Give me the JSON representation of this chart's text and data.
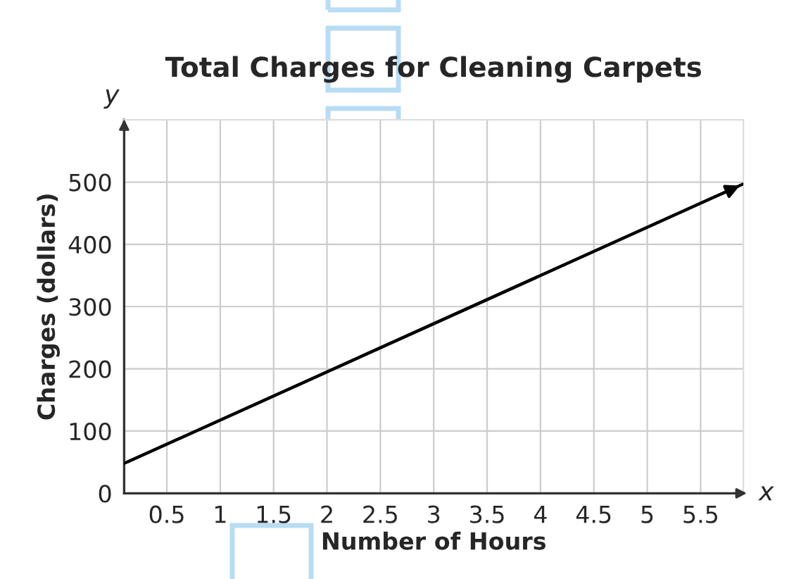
{
  "chart_data": {
    "type": "line",
    "title": "Total Charges for Cleaning Carpets",
    "xlabel": "Number of Hours",
    "ylabel": "Charges (dollars)",
    "annotations": [
      "x",
      "y"
    ],
    "x": [
      0.1,
      5.9
    ],
    "series": [
      {
        "color": "#000000",
        "values": [
          48,
          497
        ]
      }
    ],
    "xlim": [
      0.1,
      5.9
    ],
    "ylim": [
      0,
      600
    ],
    "xticks": [
      0.5,
      1,
      1.5,
      2,
      2.5,
      3,
      3.5,
      4,
      4.5,
      5,
      5.5
    ],
    "yticks": [
      0,
      100,
      200,
      300,
      400,
      500
    ],
    "grid": true,
    "marker": "none",
    "line_style": "solid"
  }
}
